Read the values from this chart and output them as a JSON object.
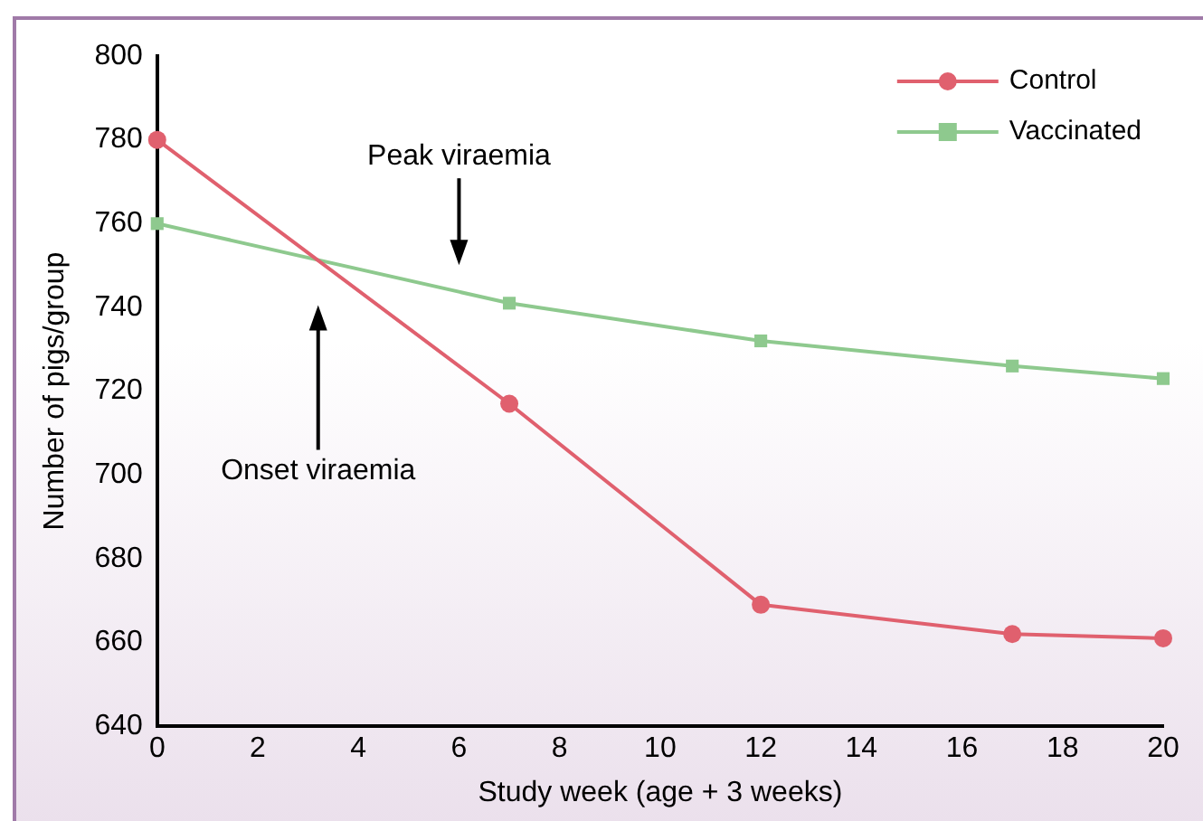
{
  "chart_data": {
    "type": "line",
    "xlabel": "Study week (age + 3 weeks)",
    "ylabel": "Number of pigs/group",
    "x": [
      0,
      7,
      12,
      17,
      20
    ],
    "series": [
      {
        "name": "Control",
        "color": "#e0606e",
        "marker": "circle",
        "values": [
          780,
          717,
          669,
          662,
          661
        ]
      },
      {
        "name": "Vaccinated",
        "color": "#8ec98e",
        "marker": "square",
        "values": [
          760,
          741,
          732,
          726,
          723
        ]
      }
    ],
    "annotations": [
      "Peak viraemia",
      "Onset viraemia"
    ],
    "xlim": [
      0,
      20
    ],
    "xticks": [
      0,
      2,
      4,
      6,
      8,
      10,
      12,
      14,
      16,
      18,
      20
    ],
    "ylim": [
      640,
      800
    ],
    "yticks": [
      640,
      660,
      680,
      700,
      720,
      740,
      760,
      780,
      800
    ],
    "grid": false,
    "legend": "top right",
    "line_style": "solid"
  }
}
